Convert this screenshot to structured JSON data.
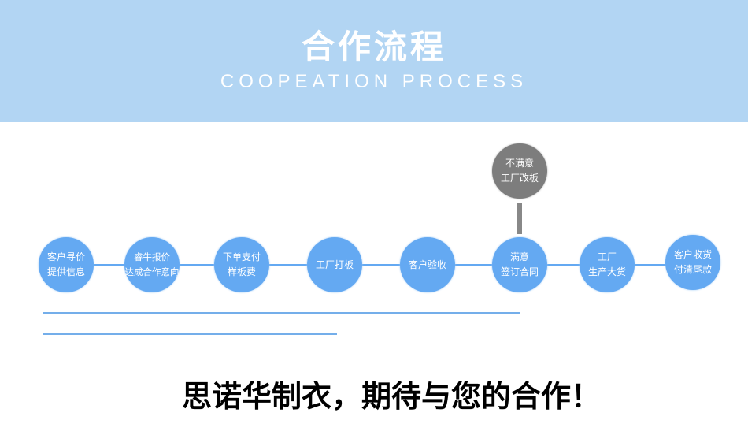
{
  "header": {
    "title": "合作流程",
    "subtitle": "COOPEATION PROCESS"
  },
  "steps": [
    {
      "label": "客户寻价\n提供信息"
    },
    {
      "label": "睿牛报价\n达成合作意向"
    },
    {
      "label": "下单支付\n样板费"
    },
    {
      "label": "工厂打板"
    },
    {
      "label": "客户验收"
    },
    {
      "label": "满意\n签订合同"
    },
    {
      "label": "工厂\n生产大货"
    },
    {
      "label": "客户收货\n付清尾款"
    }
  ],
  "branch": {
    "label": "不满意\n工厂改板"
  },
  "slogan": "思诺华制衣，期待与您的合作！",
  "colors": {
    "header": "#b2d5f3",
    "step": "#64a9f2",
    "branch": "#7d7d7d"
  }
}
